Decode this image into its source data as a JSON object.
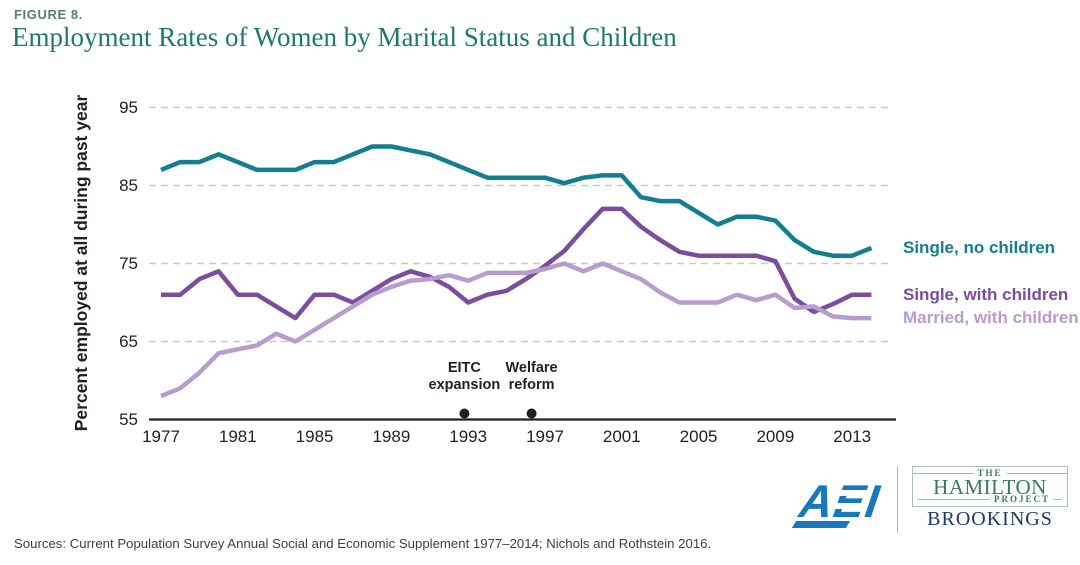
{
  "figure_label": "FIGURE 8.",
  "title": "Employment Rates of Women by Marital Status and Children",
  "chart_data": {
    "type": "line",
    "title": "Employment Rates of Women by Marital Status and Children",
    "xlabel": "",
    "ylabel": "Percent employed at all during past year",
    "ylim": [
      55,
      95
    ],
    "xlim": [
      1977,
      2014
    ],
    "y_ticks": [
      95,
      85,
      75,
      65,
      55
    ],
    "x_ticks": [
      1977,
      1981,
      1985,
      1989,
      1993,
      1997,
      2001,
      2005,
      2009,
      2013
    ],
    "grid": "horizontal-dashed",
    "legend_position": "right-of-line-ends",
    "x": [
      1977,
      1978,
      1979,
      1980,
      1981,
      1982,
      1983,
      1984,
      1985,
      1986,
      1987,
      1988,
      1989,
      1990,
      1991,
      1992,
      1993,
      1994,
      1995,
      1996,
      1997,
      1998,
      1999,
      2000,
      2001,
      2002,
      2003,
      2004,
      2005,
      2006,
      2007,
      2008,
      2009,
      2010,
      2011,
      2012,
      2013,
      2014
    ],
    "series": [
      {
        "name": "Single, no children",
        "color": "#137e8f",
        "values": [
          87,
          88,
          88,
          89,
          88,
          87,
          87,
          87,
          88,
          88,
          89,
          90,
          90,
          89.5,
          89,
          88,
          87,
          86,
          86,
          86,
          86,
          85.3,
          86,
          86.3,
          86.3,
          83.5,
          83,
          83,
          81.5,
          80,
          81,
          81,
          80.5,
          78,
          76.5,
          76,
          76,
          77
        ]
      },
      {
        "name": "Single, with children",
        "color": "#7c4c9d",
        "values": [
          71,
          71,
          73,
          74,
          71,
          71,
          69.5,
          68,
          71,
          71,
          70,
          71.5,
          73,
          74,
          73.3,
          72,
          70,
          71,
          71.5,
          73,
          74.7,
          76.6,
          79.4,
          82,
          82,
          79.7,
          78,
          76.5,
          76,
          76,
          76,
          76,
          75.3,
          70.5,
          68.8,
          69.8,
          71,
          71
        ]
      },
      {
        "name": "Married, with children",
        "color": "#b69dce",
        "values": [
          58,
          59,
          61,
          63.5,
          64,
          64.5,
          66,
          65,
          66.5,
          68,
          69.5,
          71,
          72,
          72.8,
          73,
          73.5,
          72.8,
          73.8,
          73.8,
          73.8,
          74.3,
          75,
          74,
          75,
          74,
          73,
          71.3,
          70,
          70,
          70,
          71,
          70.3,
          71,
          69.3,
          69.5,
          68.2,
          68,
          68
        ]
      }
    ],
    "annotations": [
      {
        "label": "EITC expansion",
        "label_lines": [
          "EITC",
          "expansion"
        ],
        "x": 1992.8
      },
      {
        "label": "Welfare reform",
        "label_lines": [
          "Welfare",
          "reform"
        ],
        "x": 1996.3
      }
    ]
  },
  "footer": {
    "source_note": "Sources: Current Population Survey Annual Social and Economic Supplement 1977–2014; Nichols and Rothstein 2016.",
    "logos": {
      "aei": "AEI",
      "hamilton": {
        "the": "THE",
        "name": "HAMILTON",
        "project": "PROJECT"
      },
      "brookings": "BROOKINGS"
    }
  }
}
